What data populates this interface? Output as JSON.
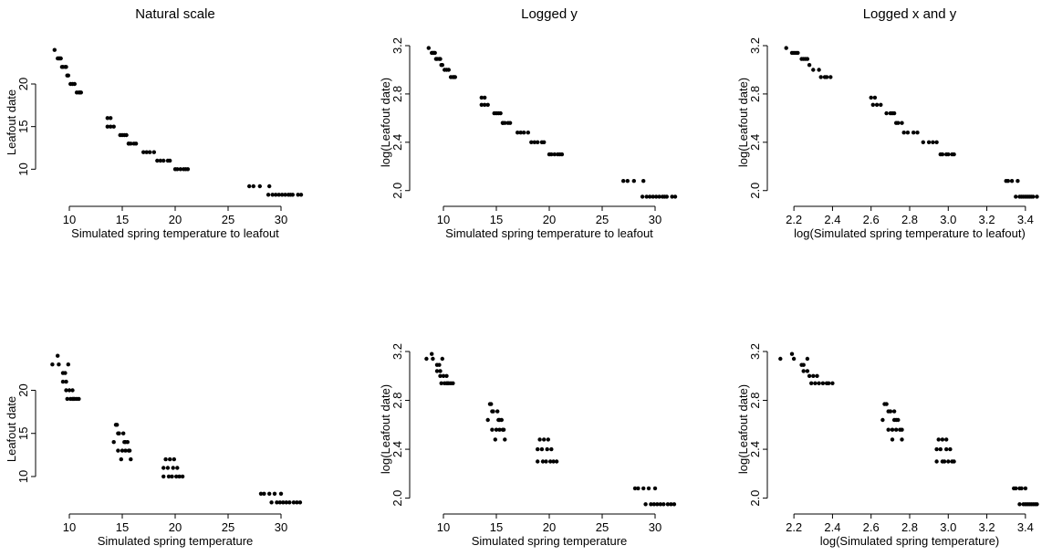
{
  "chart_data": [
    {
      "type": "scatter",
      "title": "Natural scale",
      "xlabel": "Simulated spring temperature to leafout",
      "ylabel": "Leafout date",
      "xlim": [
        7.5,
        32.5
      ],
      "ylim": [
        6.5,
        24.5
      ],
      "xticks": [
        10,
        15,
        20,
        25,
        30
      ],
      "yticks": [
        10,
        15,
        20
      ],
      "grid": false,
      "series": [
        {
          "x": [
            8.6,
            8.9,
            9.0,
            9.1,
            9.2,
            9.3,
            9.4,
            9.6,
            9.7,
            9.8,
            9.9,
            10.1,
            10.3,
            10.5,
            10.7,
            10.9,
            11.0,
            11.1,
            13.6,
            13.9,
            13.6,
            13.9,
            14.2,
            14.8,
            15.0,
            15.2,
            15.4,
            15.6,
            15.8,
            15.6,
            16.1,
            16.3,
            17.0,
            17.3,
            17.6,
            18.0,
            18.3,
            18.6,
            18.9,
            19.3,
            19.5,
            20.0,
            20.2,
            20.5,
            20.8,
            21.0,
            21.2,
            27.0,
            27.4,
            28.0,
            28.9,
            28.8,
            29.2,
            29.5,
            29.8,
            30.1,
            30.4,
            30.7,
            30.9,
            31.1,
            31.6,
            31.9
          ],
          "y": [
            24,
            23,
            23,
            23,
            23,
            22,
            22,
            22,
            22,
            21,
            21,
            20,
            20,
            20,
            19,
            19,
            19,
            19,
            16,
            16,
            15,
            15,
            15,
            14,
            14,
            14,
            14,
            13,
            13,
            13,
            13,
            13,
            12,
            12,
            12,
            12,
            11,
            11,
            11,
            11,
            11,
            10,
            10,
            10,
            10,
            10,
            10,
            8,
            8,
            8,
            8,
            7,
            7,
            7,
            7,
            7,
            7,
            7,
            7,
            7,
            7,
            7
          ]
        }
      ]
    },
    {
      "type": "scatter",
      "title": "Logged y",
      "xlabel": "Simulated spring temperature to leafout",
      "ylabel": "log(Leafout date)",
      "xlim": [
        7.5,
        32.5
      ],
      "ylim": [
        1.93,
        3.2
      ],
      "xticks": [
        10,
        15,
        20,
        25,
        30
      ],
      "yticks": [
        2.0,
        2.4,
        2.8,
        3.2
      ],
      "grid": false,
      "series": [
        {
          "x": [
            8.6,
            8.9,
            9.0,
            9.1,
            9.2,
            9.3,
            9.4,
            9.6,
            9.7,
            9.8,
            9.9,
            10.1,
            10.3,
            10.5,
            10.7,
            10.9,
            11.0,
            11.1,
            13.6,
            13.9,
            13.6,
            13.9,
            14.2,
            14.8,
            15.0,
            15.2,
            15.4,
            15.6,
            15.8,
            15.6,
            16.1,
            16.3,
            17.0,
            17.3,
            17.6,
            18.0,
            18.3,
            18.6,
            18.9,
            19.3,
            19.5,
            20.0,
            20.2,
            20.5,
            20.8,
            21.0,
            21.2,
            27.0,
            27.4,
            28.0,
            28.9,
            28.8,
            29.2,
            29.5,
            29.8,
            30.1,
            30.4,
            30.7,
            30.9,
            31.1,
            31.6,
            31.9
          ],
          "y": [
            3.18,
            3.14,
            3.14,
            3.14,
            3.14,
            3.09,
            3.09,
            3.09,
            3.09,
            3.04,
            3.04,
            3.0,
            3.0,
            3.0,
            2.94,
            2.94,
            2.94,
            2.94,
            2.77,
            2.77,
            2.71,
            2.71,
            2.71,
            2.64,
            2.64,
            2.64,
            2.64,
            2.56,
            2.56,
            2.56,
            2.56,
            2.56,
            2.48,
            2.48,
            2.48,
            2.48,
            2.4,
            2.4,
            2.4,
            2.4,
            2.4,
            2.3,
            2.3,
            2.3,
            2.3,
            2.3,
            2.3,
            2.08,
            2.08,
            2.08,
            2.08,
            1.95,
            1.95,
            1.95,
            1.95,
            1.95,
            1.95,
            1.95,
            1.95,
            1.95,
            1.95,
            1.95
          ]
        }
      ]
    },
    {
      "type": "scatter",
      "title": "Logged x and y",
      "xlabel": "log(Simulated spring temperature to leafout)",
      "ylabel": "log(Leafout date)",
      "xlim": [
        2.1,
        3.5
      ],
      "ylim": [
        1.93,
        3.2
      ],
      "xticks": [
        2.2,
        2.4,
        2.6,
        2.8,
        3.0,
        3.2,
        3.4
      ],
      "yticks": [
        2.0,
        2.4,
        2.8,
        3.2
      ],
      "grid": false,
      "series": [
        {
          "x": [
            2.16,
            2.19,
            2.2,
            2.21,
            2.22,
            2.24,
            2.25,
            2.26,
            2.27,
            2.28,
            2.3,
            2.33,
            2.34,
            2.36,
            2.37,
            2.39,
            2.6,
            2.62,
            2.61,
            2.63,
            2.65,
            2.68,
            2.7,
            2.71,
            2.72,
            2.73,
            2.74,
            2.76,
            2.77,
            2.79,
            2.82,
            2.84,
            2.87,
            2.9,
            2.92,
            2.94,
            2.96,
            2.97,
            2.99,
            3.0,
            3.02,
            3.03,
            3.3,
            3.31,
            3.33,
            3.36,
            3.35,
            3.37,
            3.38,
            3.39,
            3.4,
            3.41,
            3.42,
            3.43,
            3.44,
            3.46
          ],
          "y": [
            3.18,
            3.14,
            3.14,
            3.14,
            3.14,
            3.09,
            3.09,
            3.09,
            3.09,
            3.04,
            3.0,
            3.0,
            2.94,
            2.94,
            2.94,
            2.94,
            2.77,
            2.77,
            2.71,
            2.71,
            2.71,
            2.64,
            2.64,
            2.64,
            2.64,
            2.56,
            2.56,
            2.56,
            2.48,
            2.48,
            2.48,
            2.48,
            2.4,
            2.4,
            2.4,
            2.4,
            2.3,
            2.3,
            2.3,
            2.3,
            2.3,
            2.3,
            2.08,
            2.08,
            2.08,
            2.08,
            1.95,
            1.95,
            1.95,
            1.95,
            1.95,
            1.95,
            1.95,
            1.95,
            1.95,
            1.95
          ]
        }
      ]
    },
    {
      "type": "scatter",
      "title": "",
      "xlabel": "Simulated spring temperature",
      "ylabel": "Leafout date",
      "xlim": [
        7.5,
        32.5
      ],
      "ylim": [
        6.5,
        24.5
      ],
      "xticks": [
        10,
        15,
        20,
        25,
        30
      ],
      "yticks": [
        10,
        15,
        20
      ],
      "grid": false,
      "series": [
        {
          "x": [
            8.4,
            8.9,
            9.0,
            9.4,
            9.6,
            9.9,
            9.4,
            9.7,
            10.0,
            9.7,
            10.3,
            9.8,
            10.3,
            10.5,
            10.1,
            10.4,
            10.7,
            10.9,
            14.5,
            14.4,
            14.6,
            14.2,
            14.7,
            15.1,
            14.6,
            15.0,
            15.3,
            15.5,
            14.9,
            15.3,
            15.7,
            15.8,
            15.2,
            15.6,
            19.1,
            19.5,
            19.9,
            18.9,
            19.3,
            19.8,
            20.2,
            18.9,
            19.4,
            19.7,
            20.1,
            20.4,
            20.7,
            28.1,
            28.4,
            28.9,
            29.4,
            30.0,
            29.1,
            29.6,
            29.9,
            30.2,
            30.5,
            30.8,
            31.2,
            31.5,
            31.8
          ],
          "y": [
            23,
            24,
            23,
            22,
            22,
            23,
            21,
            21,
            20,
            20,
            20,
            19,
            19,
            19,
            19,
            19,
            19,
            19,
            16,
            16,
            15,
            14,
            15,
            15,
            13,
            13,
            14,
            14,
            12,
            13,
            13,
            12,
            14,
            13,
            12,
            12,
            12,
            11,
            11,
            11,
            11,
            10,
            10,
            10,
            10,
            10,
            10,
            8,
            8,
            8,
            8,
            8,
            7,
            7,
            7,
            7,
            7,
            7,
            7,
            7,
            7
          ]
        }
      ]
    },
    {
      "type": "scatter",
      "title": "",
      "xlabel": "Simulated spring temperature",
      "ylabel": "log(Leafout date)",
      "xlim": [
        7.5,
        32.5
      ],
      "ylim": [
        1.93,
        3.2
      ],
      "xticks": [
        10,
        15,
        20,
        25,
        30
      ],
      "yticks": [
        2.0,
        2.4,
        2.8,
        3.2
      ],
      "grid": false,
      "series": [
        {
          "x": [
            8.4,
            8.9,
            9.0,
            9.4,
            9.6,
            9.9,
            9.4,
            9.7,
            10.0,
            9.7,
            10.3,
            9.8,
            10.3,
            10.5,
            10.1,
            10.4,
            10.7,
            10.9,
            14.5,
            14.4,
            14.6,
            14.2,
            14.7,
            15.1,
            14.6,
            15.0,
            15.3,
            15.5,
            14.9,
            15.3,
            15.7,
            15.8,
            15.2,
            15.6,
            19.1,
            19.5,
            19.9,
            18.9,
            19.3,
            19.8,
            20.2,
            18.9,
            19.4,
            19.7,
            20.1,
            20.4,
            20.7,
            28.1,
            28.4,
            28.9,
            29.4,
            30.0,
            29.1,
            29.6,
            29.9,
            30.2,
            30.5,
            30.8,
            31.2,
            31.5,
            31.8
          ],
          "y": [
            3.14,
            3.18,
            3.14,
            3.09,
            3.09,
            3.14,
            3.04,
            3.04,
            3.0,
            3.0,
            3.0,
            2.94,
            2.94,
            2.94,
            2.94,
            2.94,
            2.94,
            2.94,
            2.77,
            2.77,
            2.71,
            2.64,
            2.71,
            2.71,
            2.56,
            2.56,
            2.64,
            2.64,
            2.48,
            2.56,
            2.56,
            2.48,
            2.64,
            2.56,
            2.48,
            2.48,
            2.48,
            2.4,
            2.4,
            2.4,
            2.4,
            2.3,
            2.3,
            2.3,
            2.3,
            2.3,
            2.3,
            2.08,
            2.08,
            2.08,
            2.08,
            2.08,
            1.95,
            1.95,
            1.95,
            1.95,
            1.95,
            1.95,
            1.95,
            1.95,
            1.95
          ]
        }
      ]
    },
    {
      "type": "scatter",
      "title": "",
      "xlabel": "log(Simulated spring temperature)",
      "ylabel": "log(Leafout date)",
      "xlim": [
        2.1,
        3.5
      ],
      "ylim": [
        1.93,
        3.2
      ],
      "xticks": [
        2.2,
        2.4,
        2.6,
        2.8,
        3.0,
        3.2,
        3.4
      ],
      "yticks": [
        2.0,
        2.4,
        2.8,
        3.2
      ],
      "grid": false,
      "series": [
        {
          "x": [
            2.13,
            2.19,
            2.2,
            2.24,
            2.25,
            2.27,
            2.25,
            2.27,
            2.3,
            2.28,
            2.32,
            2.29,
            2.33,
            2.35,
            2.31,
            2.37,
            2.38,
            2.4,
            2.68,
            2.67,
            2.69,
            2.66,
            2.7,
            2.72,
            2.69,
            2.71,
            2.73,
            2.74,
            2.71,
            2.73,
            2.76,
            2.76,
            2.72,
            2.75,
            2.95,
            2.97,
            2.99,
            2.94,
            2.96,
            2.99,
            3.01,
            2.94,
            2.97,
            2.98,
            3.0,
            3.02,
            3.03,
            3.34,
            3.35,
            3.37,
            3.38,
            3.4,
            3.37,
            3.39,
            3.4,
            3.41,
            3.42,
            3.43,
            3.44,
            3.45,
            3.46
          ],
          "y": [
            3.14,
            3.18,
            3.14,
            3.09,
            3.09,
            3.14,
            3.04,
            3.04,
            3.0,
            3.0,
            3.0,
            2.94,
            2.94,
            2.94,
            2.94,
            2.94,
            2.94,
            2.94,
            2.77,
            2.77,
            2.71,
            2.64,
            2.71,
            2.71,
            2.56,
            2.56,
            2.64,
            2.64,
            2.48,
            2.56,
            2.56,
            2.48,
            2.64,
            2.56,
            2.48,
            2.48,
            2.48,
            2.4,
            2.4,
            2.4,
            2.4,
            2.3,
            2.3,
            2.3,
            2.3,
            2.3,
            2.3,
            2.08,
            2.08,
            2.08,
            2.08,
            2.08,
            1.95,
            1.95,
            1.95,
            1.95,
            1.95,
            1.95,
            1.95,
            1.95,
            1.95
          ]
        }
      ]
    }
  ]
}
